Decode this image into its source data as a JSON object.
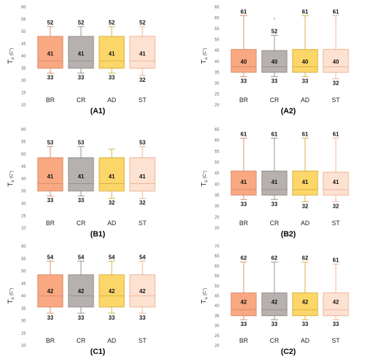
{
  "chart_data": [
    {
      "type": "box",
      "title": "(A1)",
      "ylabel_main": "T",
      "ylabel_sub": "s",
      "ylabel_unit": "(C°)",
      "ylim": [
        20,
        60
      ],
      "ytick_step": 5,
      "categories": [
        "BR",
        "CR",
        "AD",
        "ST"
      ],
      "colors": [
        "#F9A882",
        "#B6B0AF",
        "#FCD668",
        "#FDE2D2"
      ],
      "edge_colors": [
        "#D78D6E",
        "#958F8E",
        "#D6B240",
        "#EFB18F"
      ],
      "series": [
        {
          "min": 33,
          "q1": 35,
          "median": 38,
          "q3": 48,
          "max": 52,
          "mean": 41
        },
        {
          "min": 33,
          "q1": 35,
          "median": 38,
          "q3": 48,
          "max": 52,
          "mean": 41
        },
        {
          "min": 33,
          "q1": 35,
          "median": 38,
          "q3": 48,
          "max": 52,
          "mean": 41
        },
        {
          "min": 32,
          "q1": 35,
          "median": 38,
          "q3": 48,
          "max": 52,
          "mean": 41
        }
      ],
      "max_labels": [
        "52",
        "52",
        "52",
        "52"
      ],
      "min_labels": [
        "33",
        "33",
        "33",
        "32"
      ],
      "mean_labels": [
        "41",
        "41",
        "41",
        "41"
      ],
      "outlier_marks": []
    },
    {
      "type": "box",
      "title": "(A2)",
      "ylabel_main": "T",
      "ylabel_sub": "s",
      "ylabel_unit": "(C°)",
      "ylim": [
        20,
        65
      ],
      "ytick_step": 5,
      "categories": [
        "BR",
        "CR",
        "AD",
        "ST"
      ],
      "colors": [
        "#F9A882",
        "#B6B0AF",
        "#FCD668",
        "#FDE2D2"
      ],
      "edge_colors": [
        "#D78D6E",
        "#958F8E",
        "#D6B240",
        "#EFB18F"
      ],
      "series": [
        {
          "min": 33,
          "q1": 35,
          "median": 37.5,
          "q3": 45.5,
          "max": 61,
          "mean": 40
        },
        {
          "min": 33,
          "q1": 35,
          "median": 37.5,
          "q3": 45,
          "max": 52,
          "mean": 40
        },
        {
          "min": 33,
          "q1": 35,
          "median": 37.5,
          "q3": 45.5,
          "max": 61,
          "mean": 40
        },
        {
          "min": 32,
          "q1": 35,
          "median": 37.5,
          "q3": 45.5,
          "max": 61,
          "mean": 40
        }
      ],
      "max_labels": [
        "61",
        "52",
        "61",
        "61"
      ],
      "min_labels": [
        "33",
        "33",
        "33",
        "32"
      ],
      "mean_labels": [
        "40",
        "40",
        "40",
        "40"
      ],
      "outlier_marks": [
        {
          "index": 1,
          "value": 59,
          "symbol": "*"
        }
      ]
    },
    {
      "type": "box",
      "title": "(B1)",
      "ylabel_main": "T",
      "ylabel_sub": "s",
      "ylabel_unit": "(C°)",
      "ylim": [
        20,
        60
      ],
      "ytick_step": 5,
      "categories": [
        "BR",
        "CR",
        "AD",
        "ST"
      ],
      "colors": [
        "#F9A882",
        "#B6B0AF",
        "#FCD668",
        "#FDE2D2"
      ],
      "edge_colors": [
        "#D78D6E",
        "#958F8E",
        "#D6B240",
        "#EFB18F"
      ],
      "series": [
        {
          "min": 33,
          "q1": 35,
          "median": 38,
          "q3": 48.5,
          "max": 53,
          "mean": 41
        },
        {
          "min": 33,
          "q1": 35,
          "median": 38,
          "q3": 48.5,
          "max": 53,
          "mean": 41
        },
        {
          "min": 32,
          "q1": 35,
          "median": 38,
          "q3": 48.5,
          "max": 52,
          "mean": 41
        },
        {
          "min": 32,
          "q1": 35,
          "median": 38,
          "q3": 48.5,
          "max": 53,
          "mean": 41
        }
      ],
      "max_labels": [
        "53",
        "53",
        "",
        "53"
      ],
      "min_labels": [
        "33",
        "33",
        "32",
        "32"
      ],
      "mean_labels": [
        "41",
        "41",
        "41",
        "41"
      ],
      "outlier_marks": []
    },
    {
      "type": "box",
      "title": "(B2)",
      "ylabel_main": "T",
      "ylabel_sub": "s",
      "ylabel_unit": "(C°)",
      "ylim": [
        20,
        65
      ],
      "ytick_step": 5,
      "categories": [
        "BR",
        "CR",
        "AD",
        "ST"
      ],
      "colors": [
        "#F9A882",
        "#B6B0AF",
        "#FCD668",
        "#FDE2D2"
      ],
      "edge_colors": [
        "#D78D6E",
        "#958F8E",
        "#D6B240",
        "#EFB18F"
      ],
      "series": [
        {
          "min": 33,
          "q1": 35,
          "median": 37.5,
          "q3": 46,
          "max": 61,
          "mean": 41
        },
        {
          "min": 33,
          "q1": 35,
          "median": 37.5,
          "q3": 46,
          "max": 61,
          "mean": 41
        },
        {
          "min": 32,
          "q1": 35,
          "median": 37.5,
          "q3": 46,
          "max": 61,
          "mean": 41
        },
        {
          "min": 32,
          "q1": 35,
          "median": 37.5,
          "q3": 45.5,
          "max": 61,
          "mean": 41
        }
      ],
      "max_labels": [
        "61",
        "61",
        "61",
        "61"
      ],
      "min_labels": [
        "33",
        "33",
        "32",
        "32"
      ],
      "mean_labels": [
        "41",
        "41",
        "41",
        "41"
      ],
      "outlier_marks": []
    },
    {
      "type": "box",
      "title": "(C1)",
      "ylabel_main": "T",
      "ylabel_sub": "s",
      "ylabel_unit": "(C°)",
      "ylim": [
        20,
        60
      ],
      "ytick_step": 5,
      "categories": [
        "BR",
        "CR",
        "AD",
        "ST"
      ],
      "colors": [
        "#F9A882",
        "#B6B0AF",
        "#FCD668",
        "#FDE2D2"
      ],
      "edge_colors": [
        "#D78D6E",
        "#958F8E",
        "#D6B240",
        "#EFB18F"
      ],
      "series": [
        {
          "min": 33,
          "q1": 35.5,
          "median": 40,
          "q3": 48.5,
          "max": 54,
          "mean": 42
        },
        {
          "min": 33,
          "q1": 35.5,
          "median": 40,
          "q3": 48.5,
          "max": 54,
          "mean": 42
        },
        {
          "min": 33,
          "q1": 35.5,
          "median": 40,
          "q3": 48.5,
          "max": 54,
          "mean": 42
        },
        {
          "min": 33,
          "q1": 35.5,
          "median": 40,
          "q3": 48.5,
          "max": 54,
          "mean": 42
        }
      ],
      "max_labels": [
        "54",
        "54",
        "54",
        "54"
      ],
      "min_labels": [
        "33",
        "33",
        "33",
        "33"
      ],
      "mean_labels": [
        "42",
        "42",
        "42",
        "42"
      ],
      "outlier_marks": []
    },
    {
      "type": "box",
      "title": "(C2)",
      "ylabel_main": "T",
      "ylabel_sub": "s",
      "ylabel_unit": "(C°)",
      "ylim": [
        20,
        70
      ],
      "ytick_step": 5,
      "categories": [
        "BR",
        "CR",
        "AD",
        "ST"
      ],
      "colors": [
        "#F9A882",
        "#B6B0AF",
        "#FCD668",
        "#FDE2D2"
      ],
      "edge_colors": [
        "#D78D6E",
        "#958F8E",
        "#D6B240",
        "#EFB18F"
      ],
      "series": [
        {
          "min": 33,
          "q1": 35,
          "median": 38,
          "q3": 46.5,
          "max": 62,
          "mean": 42
        },
        {
          "min": 33,
          "q1": 35,
          "median": 38,
          "q3": 46.5,
          "max": 62,
          "mean": 42
        },
        {
          "min": 33,
          "q1": 35,
          "median": 38,
          "q3": 46.5,
          "max": 62,
          "mean": 42
        },
        {
          "min": 33,
          "q1": 35,
          "median": 38,
          "q3": 46.5,
          "max": 61,
          "mean": 42
        }
      ],
      "max_labels": [
        "62",
        "62",
        "62",
        "61"
      ],
      "min_labels": [
        "33",
        "33",
        "33",
        "33"
      ],
      "mean_labels": [
        "42",
        "42",
        "42",
        "42"
      ],
      "outlier_marks": []
    }
  ]
}
